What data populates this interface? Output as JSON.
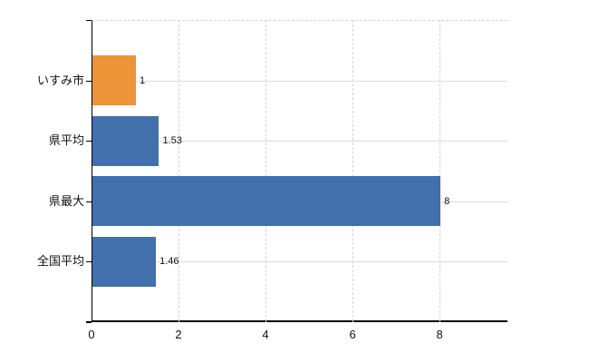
{
  "chart_data": {
    "type": "bar",
    "orientation": "horizontal",
    "title": "",
    "categories": [
      "いすみ市",
      "県平均",
      "県最大",
      "全国平均"
    ],
    "values": [
      1,
      1.53,
      8,
      1.46
    ],
    "value_labels": [
      "1",
      "1.53",
      "8",
      "1.46"
    ],
    "bar_colors": [
      "#ec9437",
      "#4270ac",
      "#4270ac",
      "#4270ac"
    ],
    "x_ticks": [
      "0",
      "2",
      "4",
      "6",
      "8"
    ],
    "x_tick_values": [
      0,
      2,
      4,
      6,
      8
    ],
    "xlim": [
      0,
      9.56
    ],
    "grid": true,
    "legend": "none",
    "colors": {
      "bar_blue": "#4270ac",
      "bar_orange": "#ec9437",
      "axis": "#000000",
      "grid": "#d8d8d8",
      "text": "#111111"
    }
  }
}
